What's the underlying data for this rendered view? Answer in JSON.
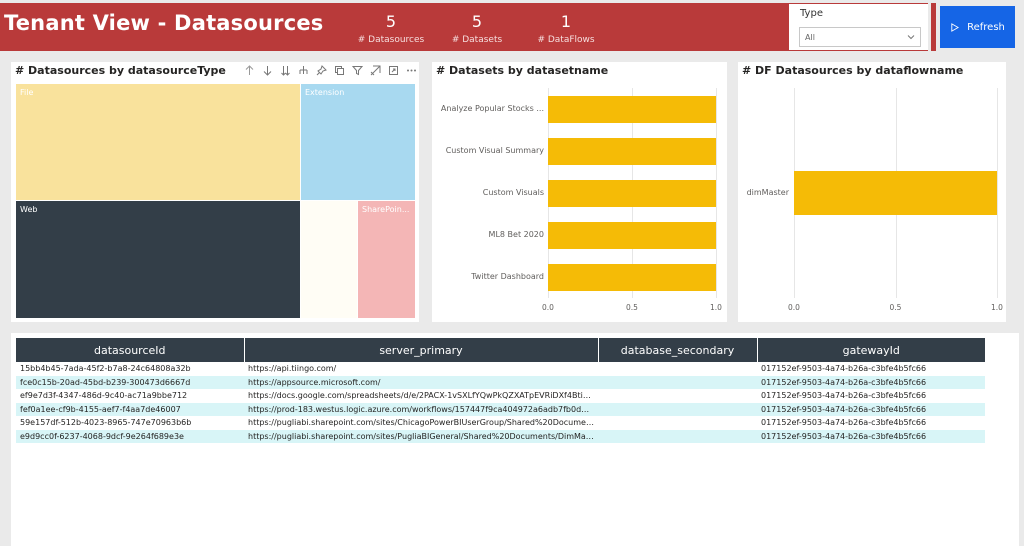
{
  "header": {
    "title": "Tenant View - Datasources",
    "kpis": [
      {
        "value": "5",
        "label": "# Datasources"
      },
      {
        "value": "5",
        "label": "# Datasets"
      },
      {
        "value": "1",
        "label": "# DataFlows"
      }
    ]
  },
  "slicer": {
    "title": "Type",
    "value": "All"
  },
  "refresh": {
    "label": "Refresh"
  },
  "colors": {
    "header": "#b93a3a",
    "refresh": "#1565e6",
    "bar": "#f5bb06",
    "table_header": "#333e48",
    "row_alt": "#d8f5f7"
  },
  "treemap": {
    "title": "# Datasources by datasourceType",
    "toolbar_icons": [
      "arrow-up-icon",
      "arrow-down-icon",
      "double-arrow-down-icon",
      "expand-hierarchy-icon",
      "pin-icon",
      "copy-icon",
      "filter-icon",
      "focus-mode-icon",
      "more-options-icon"
    ],
    "tiles": [
      {
        "label": "File",
        "color": "#f9e29c",
        "text_color": "#ffffff"
      },
      {
        "label": "Extension",
        "color": "#a8d9f0",
        "text_color": "#ffffff"
      },
      {
        "label": "Web",
        "color": "#333e48",
        "text_color": "#ffffff"
      },
      {
        "label": "",
        "color": "#fffdf5",
        "text_color": "#ffffff"
      },
      {
        "label": "SharePoin...",
        "color": "#f4b6b6",
        "text_color": "#ffffff"
      }
    ]
  },
  "chart_data": [
    {
      "type": "bar",
      "title": "# Datasets by datasetname",
      "orientation": "horizontal",
      "categories": [
        "Analyze Popular Stocks ...",
        "Custom Visual Summary",
        "Custom Visuals",
        "ML8 Bet 2020",
        "Twitter Dashboard"
      ],
      "values": [
        1,
        1,
        1,
        1,
        1
      ],
      "xticks": [
        "0.0",
        "0.5",
        "1.0"
      ],
      "xlim": [
        0,
        1
      ]
    },
    {
      "type": "bar",
      "title": "# DF Datasources by dataflowname",
      "orientation": "horizontal",
      "categories": [
        "dimMaster"
      ],
      "values": [
        1
      ],
      "xticks": [
        "0.0",
        "0.5",
        "1.0"
      ],
      "xlim": [
        0,
        1
      ]
    }
  ],
  "table": {
    "columns": [
      "datasourceId",
      "server_primary",
      "database_secondary",
      "gatewayId"
    ],
    "rows": [
      [
        "15bb4b45-7ada-45f2-b7a8-24c64808a32b",
        "https://api.tiingo.com/",
        "",
        "017152ef-9503-4a74-b26a-c3bfe4b5fc66"
      ],
      [
        "fce0c15b-20ad-45bd-b239-300473d6667d",
        "https://appsource.microsoft.com/",
        "",
        "017152ef-9503-4a74-b26a-c3bfe4b5fc66"
      ],
      [
        "ef9e7d3f-4347-486d-9c40-ac71a9bbe712",
        "https://docs.google.com/spreadsheets/d/e/2PACX-1vSXLfYQwPkQZXATpEVRiDXf4BtivKVPL...",
        "",
        "017152ef-9503-4a74-b26a-c3bfe4b5fc66"
      ],
      [
        "fef0a1ee-cf9b-4155-aef7-f4aa7de46007",
        "https://prod-183.westus.logic.azure.com/workflows/157447f9ca404972a6adb7fb0d44813b...",
        "",
        "017152ef-9503-4a74-b26a-c3bfe4b5fc66"
      ],
      [
        "59e157df-512b-4023-8965-747e70963b6b",
        "https://pugliabi.sharepoint.com/sites/ChicagoPowerBIUserGroup/Shared%20Documents/G...",
        "",
        "017152ef-9503-4a74-b26a-c3bfe4b5fc66"
      ],
      [
        "e9d9cc0f-6237-4068-9dcf-9e264f689e3e",
        "https://pugliabi.sharepoint.com/sites/PugliaBIGeneral/Shared%20Documents/DimMaster/...",
        "",
        "017152ef-9503-4a74-b26a-c3bfe4b5fc66"
      ]
    ]
  }
}
